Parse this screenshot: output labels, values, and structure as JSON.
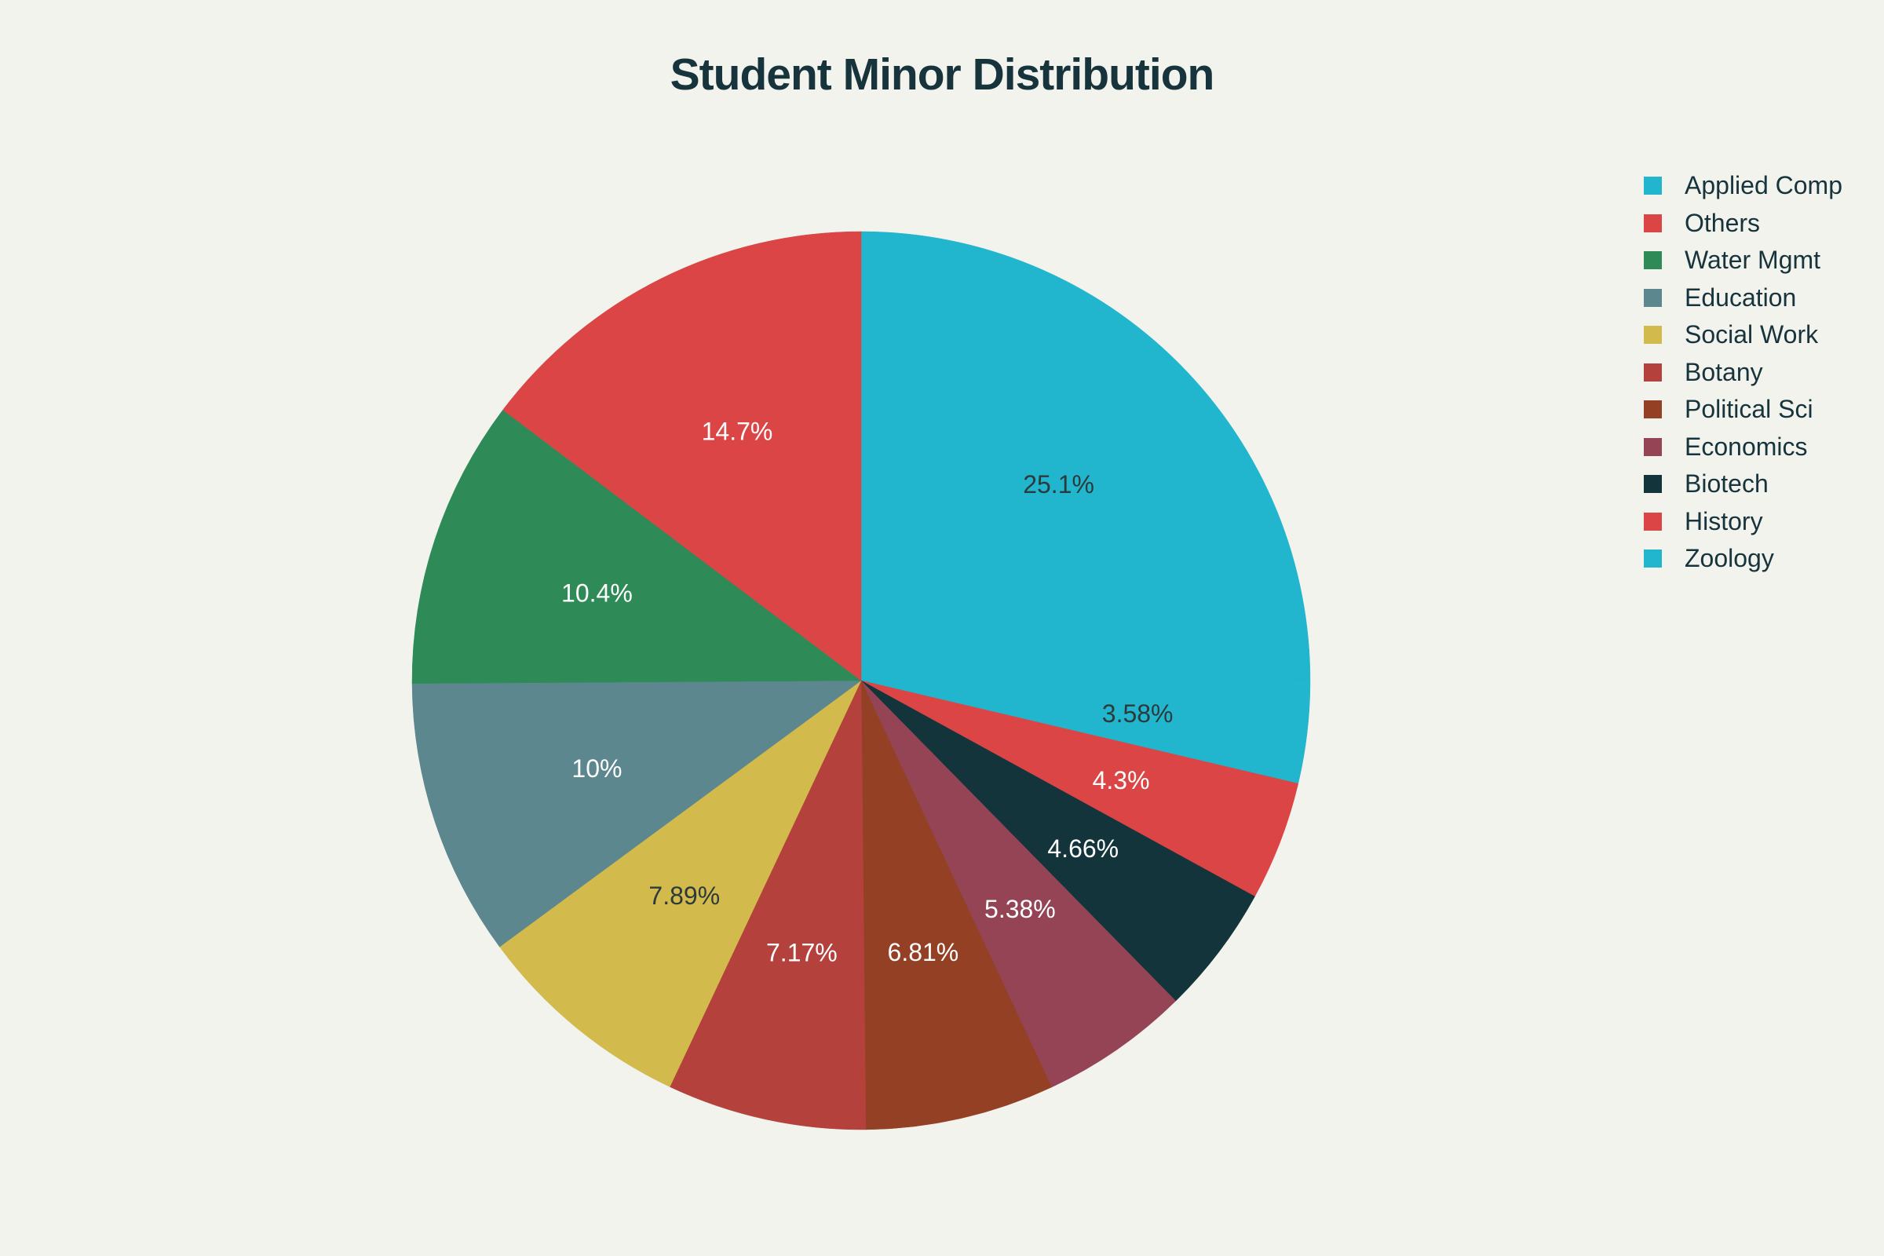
{
  "chart_data": {
    "type": "pie",
    "title": "Student Minor Distribution",
    "legend_position": "top-right",
    "start_angle_deg": 90,
    "direction": "clockwise",
    "slices": [
      {
        "label": "Applied Comp",
        "value": 25.1,
        "text": "25.1%",
        "color": "#21b6cd",
        "text_color": "#2d3a3c"
      },
      {
        "label": "Zoology",
        "value": 3.58,
        "text": "3.58%",
        "color": "#21b6cd",
        "text_color": "#2d3a3c"
      },
      {
        "label": "History",
        "value": 4.3,
        "text": "4.3%",
        "color": "#db4545",
        "text_color": "#ffffff"
      },
      {
        "label": "Biotech",
        "value": 4.66,
        "text": "4.66%",
        "color": "#13343b",
        "text_color": "#ffffff"
      },
      {
        "label": "Economics",
        "value": 5.38,
        "text": "5.38%",
        "color": "#944454",
        "text_color": "#ffffff"
      },
      {
        "label": "Political Sci",
        "value": 6.81,
        "text": "6.81%",
        "color": "#944025",
        "text_color": "#ffffff"
      },
      {
        "label": "Botany",
        "value": 7.17,
        "text": "7.17%",
        "color": "#b4413c",
        "text_color": "#ffffff"
      },
      {
        "label": "Social Work",
        "value": 7.89,
        "text": "7.89%",
        "color": "#d2ba4c",
        "text_color": "#2d3a3c"
      },
      {
        "label": "Education",
        "value": 10.0,
        "text": "10%",
        "color": "#5d878f",
        "text_color": "#ffffff"
      },
      {
        "label": "Water Mgmt",
        "value": 10.4,
        "text": "10.4%",
        "color": "#2e8b57",
        "text_color": "#ffffff"
      },
      {
        "label": "Others",
        "value": 14.7,
        "text": "14.7%",
        "color": "#db4545",
        "text_color": "#ffffff"
      }
    ],
    "legend": [
      {
        "label": "Applied Comp",
        "color": "#21b6cd"
      },
      {
        "label": "Others",
        "color": "#db4545"
      },
      {
        "label": "Water Mgmt",
        "color": "#2e8b57"
      },
      {
        "label": "Education",
        "color": "#5d878f"
      },
      {
        "label": "Social Work",
        "color": "#d2ba4c"
      },
      {
        "label": "Botany",
        "color": "#b4413c"
      },
      {
        "label": "Political Sci",
        "color": "#944025"
      },
      {
        "label": "Economics",
        "color": "#944454"
      },
      {
        "label": "Biotech",
        "color": "#13343b"
      },
      {
        "label": "History",
        "color": "#db4545"
      },
      {
        "label": "Zoology",
        "color": "#21b6cd"
      }
    ]
  }
}
